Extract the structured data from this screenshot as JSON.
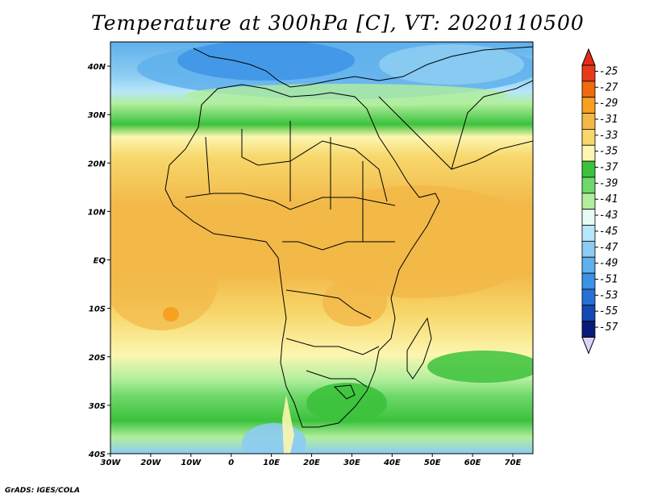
{
  "title": "Temperature at 300hPa [C], VT: 2020110500",
  "credit": "GrADS: IGES/COLA",
  "map": {
    "lon_labels": [
      "30W",
      "20W",
      "10W",
      "0",
      "10E",
      "20E",
      "30E",
      "40E",
      "50E",
      "60E",
      "70E"
    ],
    "lat_labels": [
      "40N",
      "30N",
      "20N",
      "10N",
      "EQ",
      "10S",
      "20S",
      "30S",
      "40S"
    ],
    "lon_range": [
      -30,
      75
    ],
    "lat_range": [
      -40,
      45
    ]
  },
  "colorbar": {
    "labels": [
      "-25",
      "-27",
      "-29",
      "-31",
      "-33",
      "-35",
      "-37",
      "-39",
      "-41",
      "-43",
      "-45",
      "-47",
      "-49",
      "-51",
      "-53",
      "-55",
      "-57"
    ],
    "colors": [
      "#e63a1a",
      "#f06a10",
      "#f8a020",
      "#f2b848",
      "#f7d76b",
      "#fcf6b0",
      "#3cc23c",
      "#6ed86a",
      "#b2ee9e",
      "#e6fbf4",
      "#b8e6fa",
      "#8cccf2",
      "#5fb0ec",
      "#3b92e6",
      "#2870d6",
      "#1448b2",
      "#0a1a78"
    ],
    "top_arrow_color": "#e62a1a",
    "bottom_arrow_color": "#dcd4f8"
  }
}
